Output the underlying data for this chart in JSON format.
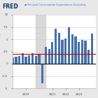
{
  "title": "FRED",
  "series_label": "Personal Consumption Expenditures Excluding",
  "bar_color": "#4472a8",
  "red_line_y": 2.0,
  "recession_start": 2019.75,
  "recession_end": 2020.5,
  "ylim": [
    -5.0,
    10.0
  ],
  "yticks": [
    -5.0,
    -2.5,
    0.0,
    2.5,
    5.0,
    7.5,
    10.0
  ],
  "xlim": [
    2018.0,
    2024.3
  ],
  "xticks": [
    2019,
    2021,
    2022,
    2023
  ],
  "data": [
    {
      "date": 2018.0,
      "value": 1.3
    },
    {
      "date": 2018.25,
      "value": 1.5
    },
    {
      "date": 2018.5,
      "value": 1.6
    },
    {
      "date": 2018.75,
      "value": 2.1
    },
    {
      "date": 2019.0,
      "value": 1.4
    },
    {
      "date": 2019.25,
      "value": 1.7
    },
    {
      "date": 2019.5,
      "value": 2.2
    },
    {
      "date": 2019.75,
      "value": 1.6
    },
    {
      "date": 2020.0,
      "value": 1.9
    },
    {
      "date": 2020.25,
      "value": -4.0
    },
    {
      "date": 2020.5,
      "value": 3.5
    },
    {
      "date": 2020.75,
      "value": 3.0
    },
    {
      "date": 2021.0,
      "value": 4.5
    },
    {
      "date": 2021.25,
      "value": 7.2
    },
    {
      "date": 2021.5,
      "value": 6.3
    },
    {
      "date": 2021.75,
      "value": 4.8
    },
    {
      "date": 2022.0,
      "value": 5.2
    },
    {
      "date": 2022.25,
      "value": 7.5
    },
    {
      "date": 2022.5,
      "value": 6.0
    },
    {
      "date": 2022.75,
      "value": 5.6
    },
    {
      "date": 2023.0,
      "value": 4.5
    },
    {
      "date": 2023.25,
      "value": 4.9
    },
    {
      "date": 2023.5,
      "value": 4.7
    },
    {
      "date": 2023.75,
      "value": 2.9
    },
    {
      "date": 2024.0,
      "value": 6.2
    }
  ],
  "background_color": "#e8e8e8",
  "plot_bg": "#ffffff",
  "grid_color": "#cccccc",
  "ylabel": "Compounded Annual Rate of Change",
  "fred_red": "#cc0000",
  "fred_blue": "#003366",
  "legend_dot_color": "#4472a8"
}
